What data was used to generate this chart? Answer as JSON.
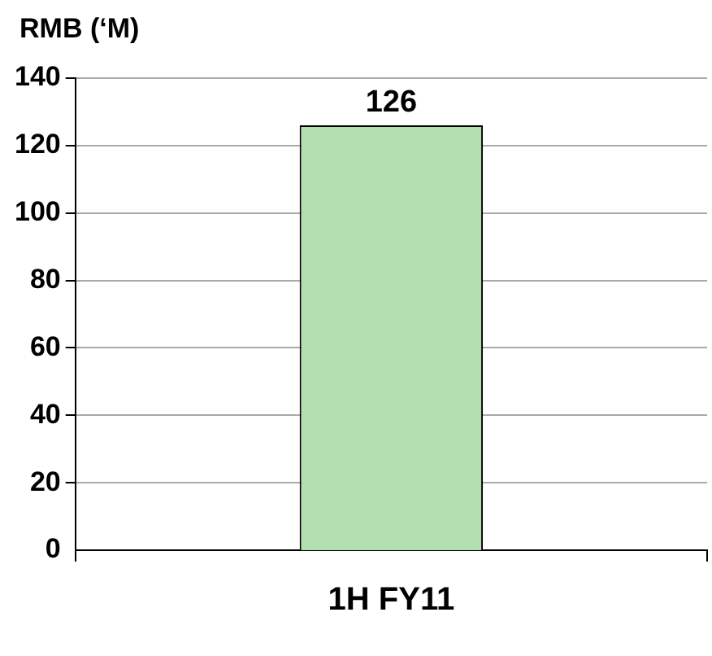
{
  "chart_data": {
    "type": "bar",
    "ylabel": "RMB (‘M)",
    "categories": [
      "1H FY11"
    ],
    "values": [
      126
    ],
    "color": "#b3deb0",
    "ylim": [
      0,
      140
    ],
    "yticks": [
      0,
      20,
      40,
      60,
      80,
      100,
      120,
      140
    ],
    "grid": "y",
    "data_labels": true,
    "legend": false
  }
}
